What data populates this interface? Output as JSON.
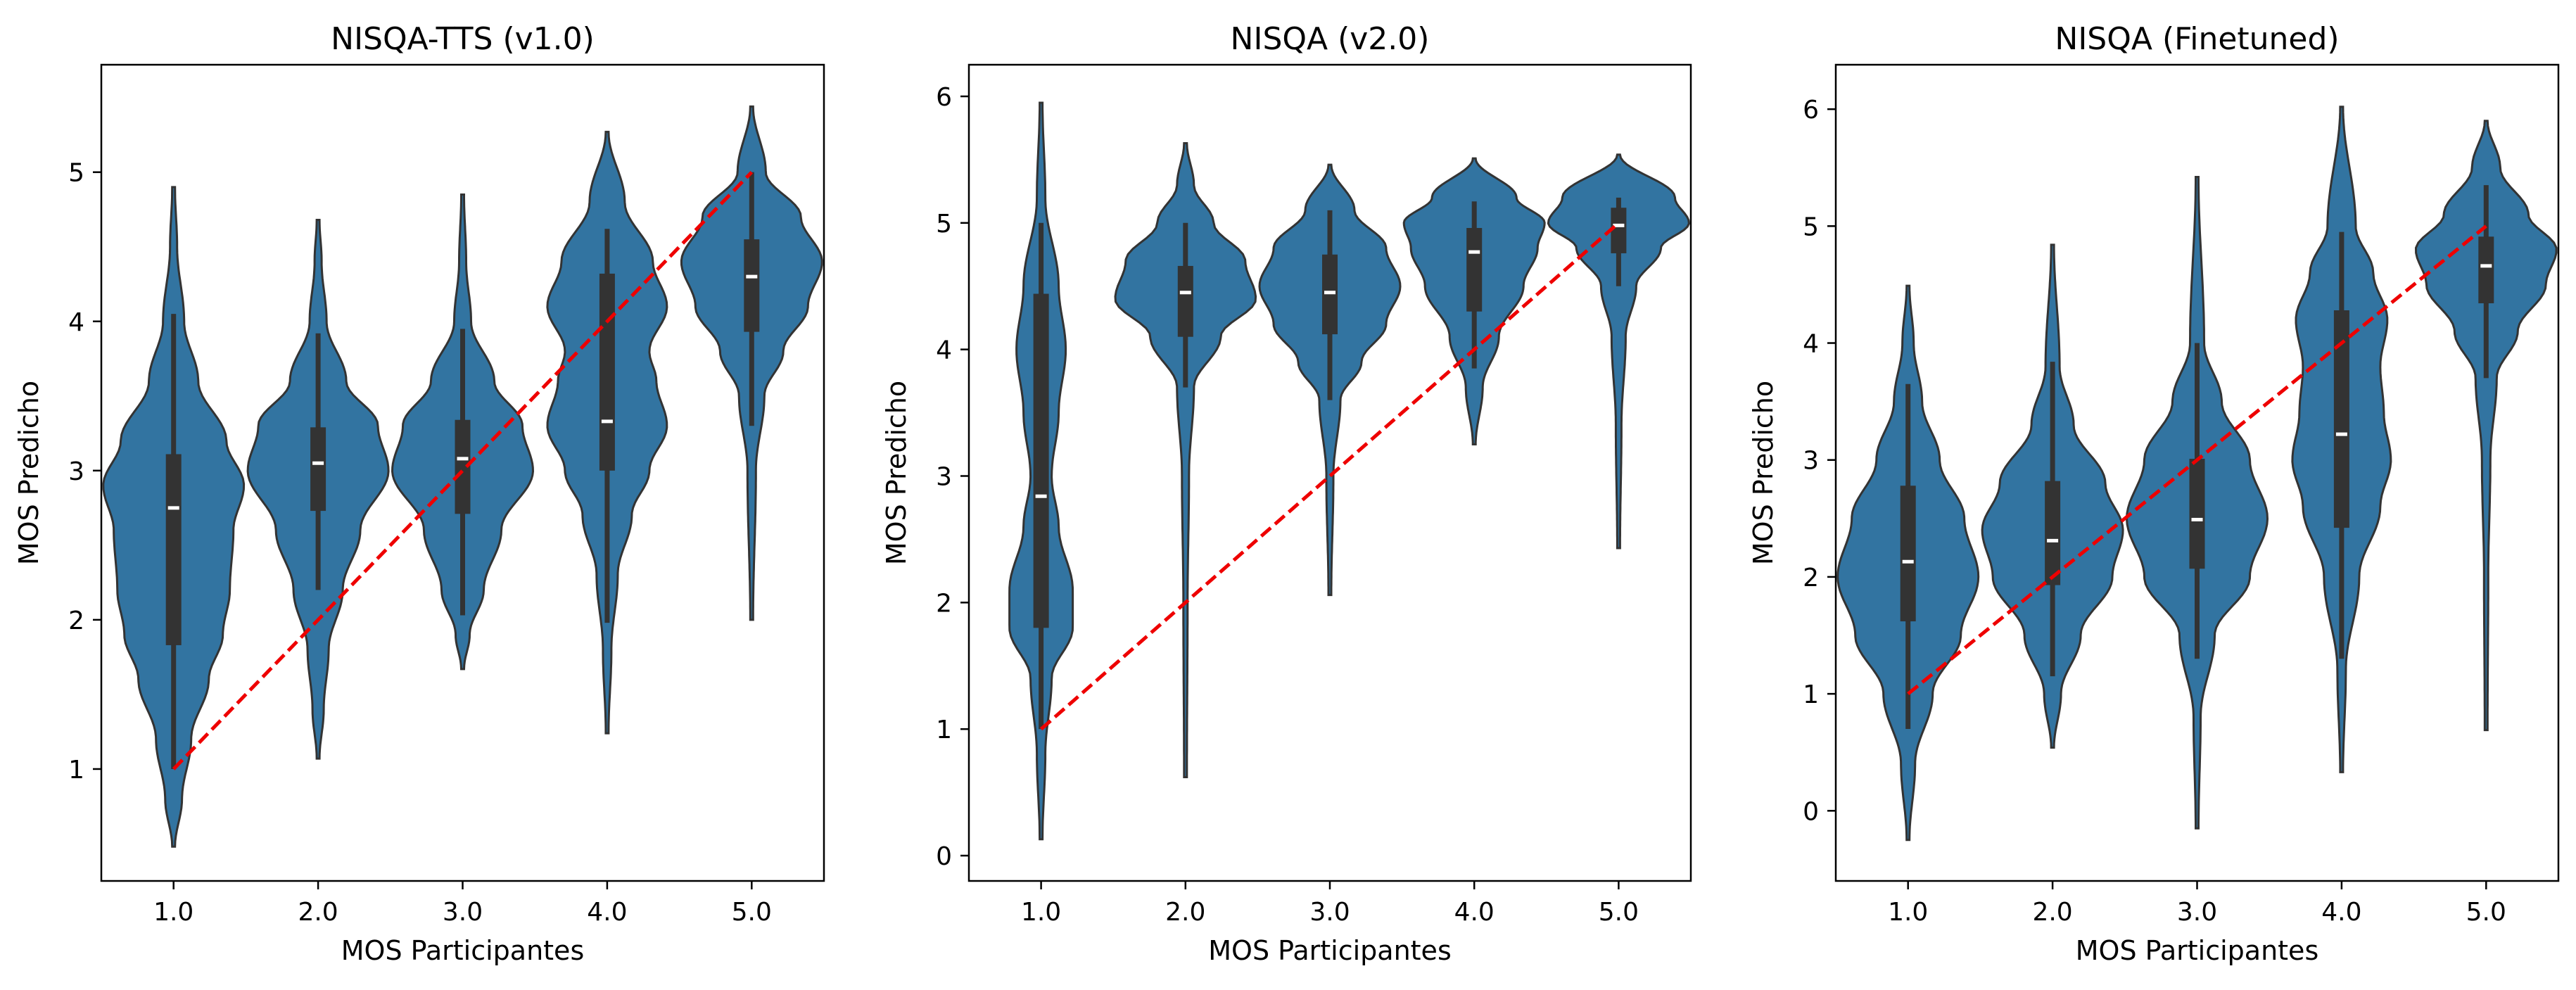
{
  "chart_data": [
    {
      "type": "violin",
      "title": "NISQA-TTS (v1.0)",
      "xlabel": "MOS Participantes",
      "ylabel": "MOS Predicho",
      "categories": [
        "1.0",
        "2.0",
        "3.0",
        "4.0",
        "5.0"
      ],
      "yticks": [
        "1",
        "2",
        "3",
        "4",
        "5"
      ],
      "ylim": [
        0.25,
        5.72
      ],
      "reference_line": {
        "from": [
          1.0,
          1.0
        ],
        "to": [
          5.0,
          5.0
        ],
        "color": "#ee0000"
      },
      "violins": [
        {
          "category": "1.0",
          "median": 2.75,
          "q1": 1.83,
          "q3": 3.11,
          "whisker_low": 1.0,
          "whisker_high": 4.05,
          "ymin": 0.48,
          "ymax": 4.9,
          "profile": [
            [
              0.48,
              0.02
            ],
            [
              0.8,
              0.12
            ],
            [
              1.2,
              0.25
            ],
            [
              1.6,
              0.5
            ],
            [
              1.9,
              0.7
            ],
            [
              2.2,
              0.8
            ],
            [
              2.6,
              0.85
            ],
            [
              2.9,
              1.0
            ],
            [
              3.2,
              0.75
            ],
            [
              3.6,
              0.35
            ],
            [
              4.0,
              0.15
            ],
            [
              4.5,
              0.05
            ],
            [
              4.9,
              0.02
            ]
          ]
        },
        {
          "category": "2.0",
          "median": 3.05,
          "q1": 2.73,
          "q3": 3.29,
          "whisker_low": 2.2,
          "whisker_high": 3.92,
          "ymin": 1.07,
          "ymax": 4.68,
          "profile": [
            [
              1.07,
              0.02
            ],
            [
              1.4,
              0.08
            ],
            [
              1.8,
              0.15
            ],
            [
              2.2,
              0.35
            ],
            [
              2.6,
              0.6
            ],
            [
              3.0,
              1.0
            ],
            [
              3.3,
              0.85
            ],
            [
              3.6,
              0.4
            ],
            [
              4.0,
              0.12
            ],
            [
              4.4,
              0.05
            ],
            [
              4.68,
              0.02
            ]
          ]
        },
        {
          "category": "3.0",
          "median": 3.08,
          "q1": 2.71,
          "q3": 3.34,
          "whisker_low": 2.03,
          "whisker_high": 3.95,
          "ymin": 1.67,
          "ymax": 4.85,
          "profile": [
            [
              1.67,
              0.02
            ],
            [
              1.9,
              0.1
            ],
            [
              2.2,
              0.3
            ],
            [
              2.6,
              0.55
            ],
            [
              3.0,
              1.0
            ],
            [
              3.3,
              0.85
            ],
            [
              3.6,
              0.45
            ],
            [
              4.0,
              0.12
            ],
            [
              4.4,
              0.05
            ],
            [
              4.85,
              0.02
            ]
          ]
        },
        {
          "category": "4.0",
          "median": 3.33,
          "q1": 3.0,
          "q3": 4.32,
          "whisker_low": 1.98,
          "whisker_high": 4.62,
          "ymin": 1.24,
          "ymax": 5.27,
          "profile": [
            [
              1.24,
              0.02
            ],
            [
              1.8,
              0.06
            ],
            [
              2.3,
              0.15
            ],
            [
              2.7,
              0.35
            ],
            [
              3.0,
              0.6
            ],
            [
              3.3,
              0.85
            ],
            [
              3.6,
              0.7
            ],
            [
              3.8,
              0.6
            ],
            [
              4.1,
              0.85
            ],
            [
              4.4,
              0.65
            ],
            [
              4.8,
              0.25
            ],
            [
              5.27,
              0.02
            ]
          ]
        },
        {
          "category": "5.0",
          "median": 4.3,
          "q1": 3.93,
          "q3": 4.55,
          "whisker_low": 3.3,
          "whisker_high": 5.0,
          "ymin": 2.0,
          "ymax": 5.44,
          "profile": [
            [
              2.0,
              0.02
            ],
            [
              3.0,
              0.06
            ],
            [
              3.5,
              0.18
            ],
            [
              3.8,
              0.45
            ],
            [
              4.1,
              0.8
            ],
            [
              4.4,
              1.0
            ],
            [
              4.7,
              0.7
            ],
            [
              5.0,
              0.2
            ],
            [
              5.44,
              0.02
            ]
          ]
        }
      ]
    },
    {
      "type": "violin",
      "title": "NISQA (v2.0)",
      "xlabel": "MOS Participantes",
      "ylabel": "MOS Predicho",
      "categories": [
        "1.0",
        "2.0",
        "3.0",
        "4.0",
        "5.0"
      ],
      "yticks": [
        "0",
        "1",
        "2",
        "3",
        "4",
        "5",
        "6"
      ],
      "ylim": [
        -0.2,
        6.25
      ],
      "reference_line": {
        "from": [
          1.0,
          1.0
        ],
        "to": [
          5.0,
          5.0
        ],
        "color": "#ee0000"
      },
      "violins": [
        {
          "category": "1.0",
          "median": 2.84,
          "q1": 1.8,
          "q3": 4.44,
          "whisker_low": 1.0,
          "whisker_high": 5.0,
          "ymin": 0.13,
          "ymax": 5.95,
          "profile": [
            [
              0.13,
              0.02
            ],
            [
              0.8,
              0.06
            ],
            [
              1.4,
              0.15
            ],
            [
              1.8,
              0.45
            ],
            [
              2.1,
              0.45
            ],
            [
              2.6,
              0.25
            ],
            [
              3.0,
              0.15
            ],
            [
              3.5,
              0.25
            ],
            [
              4.0,
              0.35
            ],
            [
              4.5,
              0.25
            ],
            [
              5.2,
              0.06
            ],
            [
              5.95,
              0.02
            ]
          ]
        },
        {
          "category": "2.0",
          "median": 4.45,
          "q1": 4.1,
          "q3": 4.66,
          "whisker_low": 3.7,
          "whisker_high": 5.0,
          "ymin": 0.62,
          "ymax": 5.63,
          "profile": [
            [
              0.62,
              0.02
            ],
            [
              2.0,
              0.03
            ],
            [
              3.0,
              0.05
            ],
            [
              3.7,
              0.12
            ],
            [
              4.1,
              0.5
            ],
            [
              4.4,
              1.0
            ],
            [
              4.7,
              0.85
            ],
            [
              5.0,
              0.4
            ],
            [
              5.3,
              0.12
            ],
            [
              5.63,
              0.02
            ]
          ]
        },
        {
          "category": "3.0",
          "median": 4.45,
          "q1": 4.12,
          "q3": 4.75,
          "whisker_low": 3.6,
          "whisker_high": 5.1,
          "ymin": 2.06,
          "ymax": 5.46,
          "profile": [
            [
              2.06,
              0.02
            ],
            [
              3.0,
              0.05
            ],
            [
              3.6,
              0.15
            ],
            [
              3.9,
              0.45
            ],
            [
              4.2,
              0.8
            ],
            [
              4.5,
              1.0
            ],
            [
              4.8,
              0.8
            ],
            [
              5.1,
              0.35
            ],
            [
              5.46,
              0.02
            ]
          ]
        },
        {
          "category": "4.0",
          "median": 4.77,
          "q1": 4.3,
          "q3": 4.96,
          "whisker_low": 3.85,
          "whisker_high": 5.17,
          "ymin": 3.25,
          "ymax": 5.51,
          "profile": [
            [
              3.25,
              0.02
            ],
            [
              3.7,
              0.12
            ],
            [
              4.1,
              0.35
            ],
            [
              4.5,
              0.7
            ],
            [
              4.8,
              0.9
            ],
            [
              5.0,
              1.0
            ],
            [
              5.2,
              0.6
            ],
            [
              5.51,
              0.02
            ]
          ]
        },
        {
          "category": "5.0",
          "median": 4.98,
          "q1": 4.76,
          "q3": 5.12,
          "whisker_low": 4.5,
          "whisker_high": 5.2,
          "ymin": 2.43,
          "ymax": 5.54,
          "profile": [
            [
              2.43,
              0.02
            ],
            [
              3.4,
              0.04
            ],
            [
              4.1,
              0.1
            ],
            [
              4.5,
              0.25
            ],
            [
              4.8,
              0.6
            ],
            [
              5.0,
              1.0
            ],
            [
              5.2,
              0.8
            ],
            [
              5.54,
              0.02
            ]
          ]
        }
      ]
    },
    {
      "type": "violin",
      "title": "NISQA (Finetuned)",
      "xlabel": "MOS Participantes",
      "ylabel": "MOS Predicho",
      "categories": [
        "1.0",
        "2.0",
        "3.0",
        "4.0",
        "5.0"
      ],
      "yticks": [
        "0",
        "1",
        "2",
        "3",
        "4",
        "5",
        "6"
      ],
      "ylim": [
        -0.6,
        6.38
      ],
      "reference_line": {
        "from": [
          1.0,
          1.0
        ],
        "to": [
          5.0,
          5.0
        ],
        "color": "#ee0000"
      },
      "violins": [
        {
          "category": "1.0",
          "median": 2.13,
          "q1": 1.62,
          "q3": 2.78,
          "whisker_low": 0.7,
          "whisker_high": 3.65,
          "ymin": -0.25,
          "ymax": 4.49,
          "profile": [
            [
              -0.25,
              0.02
            ],
            [
              0.4,
              0.1
            ],
            [
              1.0,
              0.35
            ],
            [
              1.5,
              0.75
            ],
            [
              2.0,
              1.0
            ],
            [
              2.5,
              0.8
            ],
            [
              3.0,
              0.45
            ],
            [
              3.5,
              0.2
            ],
            [
              4.0,
              0.08
            ],
            [
              4.49,
              0.02
            ]
          ]
        },
        {
          "category": "2.0",
          "median": 2.31,
          "q1": 1.93,
          "q3": 2.82,
          "whisker_low": 1.15,
          "whisker_high": 3.84,
          "ymin": 0.54,
          "ymax": 4.84,
          "profile": [
            [
              0.54,
              0.02
            ],
            [
              1.0,
              0.12
            ],
            [
              1.5,
              0.4
            ],
            [
              2.0,
              0.85
            ],
            [
              2.4,
              1.0
            ],
            [
              2.8,
              0.75
            ],
            [
              3.3,
              0.3
            ],
            [
              3.8,
              0.1
            ],
            [
              4.84,
              0.02
            ]
          ]
        },
        {
          "category": "3.0",
          "median": 2.49,
          "q1": 2.07,
          "q3": 3.01,
          "whisker_low": 1.3,
          "whisker_high": 4.0,
          "ymin": -0.15,
          "ymax": 5.42,
          "profile": [
            [
              -0.15,
              0.02
            ],
            [
              0.8,
              0.05
            ],
            [
              1.5,
              0.25
            ],
            [
              2.0,
              0.75
            ],
            [
              2.5,
              1.0
            ],
            [
              3.0,
              0.75
            ],
            [
              3.5,
              0.35
            ],
            [
              4.0,
              0.1
            ],
            [
              5.42,
              0.02
            ]
          ]
        },
        {
          "category": "4.0",
          "median": 3.22,
          "q1": 2.42,
          "q3": 4.28,
          "whisker_low": 1.3,
          "whisker_high": 4.95,
          "ymin": 0.33,
          "ymax": 6.02,
          "profile": [
            [
              0.33,
              0.02
            ],
            [
              1.2,
              0.06
            ],
            [
              2.0,
              0.25
            ],
            [
              2.6,
              0.55
            ],
            [
              3.0,
              0.7
            ],
            [
              3.4,
              0.6
            ],
            [
              3.8,
              0.55
            ],
            [
              4.2,
              0.65
            ],
            [
              4.6,
              0.45
            ],
            [
              5.0,
              0.2
            ],
            [
              6.02,
              0.02
            ]
          ]
        },
        {
          "category": "5.0",
          "median": 4.66,
          "q1": 4.34,
          "q3": 4.91,
          "whisker_low": 3.7,
          "whisker_high": 5.35,
          "ymin": 0.69,
          "ymax": 5.9,
          "profile": [
            [
              0.69,
              0.02
            ],
            [
              2.0,
              0.03
            ],
            [
              3.0,
              0.06
            ],
            [
              3.7,
              0.15
            ],
            [
              4.1,
              0.45
            ],
            [
              4.5,
              0.85
            ],
            [
              4.8,
              1.0
            ],
            [
              5.1,
              0.6
            ],
            [
              5.5,
              0.2
            ],
            [
              5.9,
              0.02
            ]
          ]
        }
      ]
    }
  ]
}
